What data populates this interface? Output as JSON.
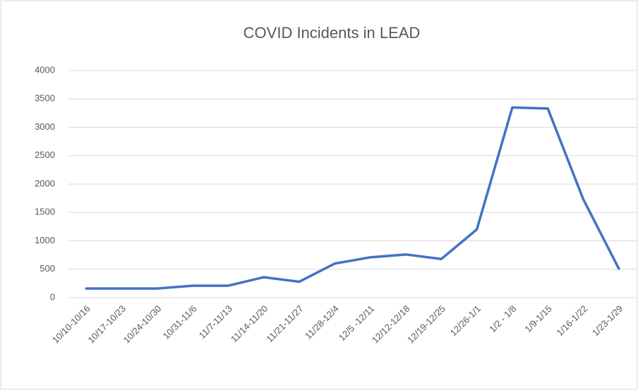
{
  "chart_data": {
    "type": "line",
    "title": "COVID Incidents in LEAD",
    "categories": [
      "10/10-10/16",
      "10/17-10/23",
      "10/24-10/30",
      "10/31-11/6",
      "11/7-11/13",
      "11/14-11/20",
      "11/21-11/27",
      "11/28-12/4",
      "12/5 -12/11",
      "12/12-12/18",
      "12/19-12/25",
      "12/26-1/1",
      "1/2 - 1/8",
      "1/9-1/15",
      "1/16-1/22",
      "1/23-1/29"
    ],
    "values": [
      160,
      160,
      160,
      210,
      210,
      360,
      280,
      600,
      710,
      760,
      680,
      1200,
      3350,
      3330,
      1730,
      510
    ],
    "color": "#4472c4",
    "ylim": [
      0,
      4000
    ],
    "yticks": [
      0,
      500,
      1000,
      1500,
      2000,
      2500,
      3000,
      3500,
      4000
    ],
    "grid": true
  }
}
